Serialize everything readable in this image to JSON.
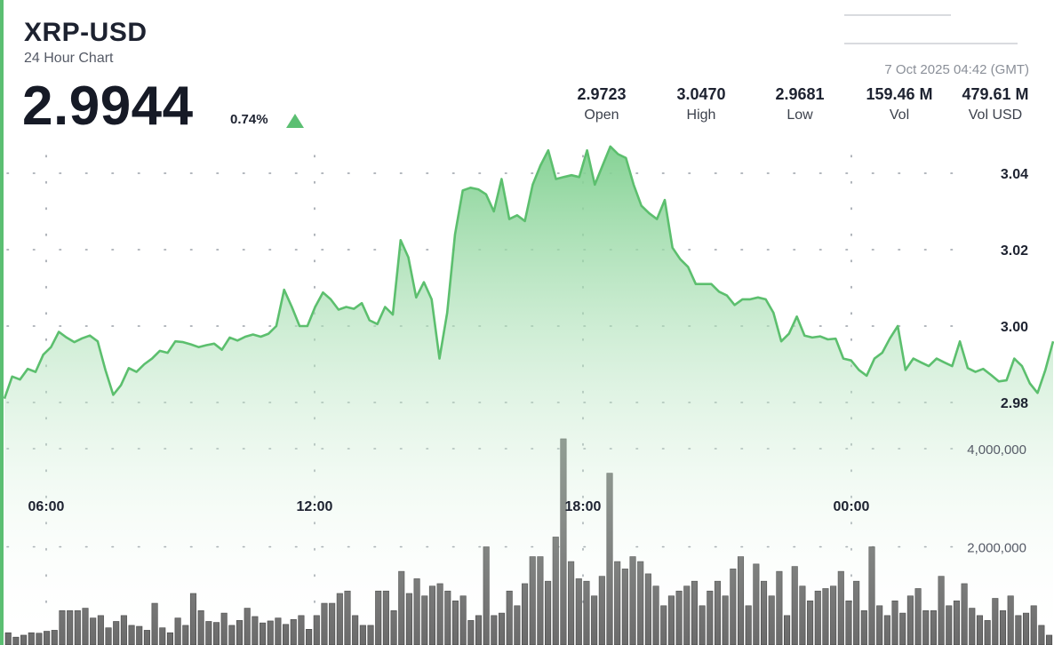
{
  "header": {
    "pair": "XRP-USD",
    "subtitle": "24 Hour Chart",
    "price": "2.9944",
    "change_pct": "0.74%",
    "timestamp": "7 Oct 2025 04:42 (GMT)"
  },
  "stats": [
    {
      "value": "2.9723",
      "label": "Open"
    },
    {
      "value": "3.0470",
      "label": "High"
    },
    {
      "value": "2.9681",
      "label": "Low"
    },
    {
      "value": "159.46 M",
      "label": "Vol"
    },
    {
      "value": "479.61 M",
      "label": "Vol USD"
    }
  ],
  "colors": {
    "accent": "#5bbf72",
    "line": "#5cbf6e",
    "area_top": "#7fd08f",
    "volume_bar": "#6b6b6b",
    "volume_bar_edge": "#3f3f3f",
    "grid_dot": "#9aa0a8"
  },
  "chart_data": {
    "type": "area",
    "x_tick_labels": [
      "06:00",
      "12:00",
      "18:00",
      "00:00"
    ],
    "price": {
      "ylim": [
        2.968,
        3.047
      ],
      "y_ticks": [
        2.98,
        3.0,
        3.02,
        3.04
      ],
      "y_tick_labels": [
        "2.98",
        "3.00",
        "3.02",
        "3.04"
      ],
      "values": [
        2.981,
        2.9868,
        2.986,
        2.9888,
        2.988,
        2.9925,
        2.9945,
        2.9985,
        2.997,
        2.9958,
        2.9968,
        2.9975,
        2.996,
        2.9885,
        2.982,
        2.9845,
        2.989,
        2.988,
        2.99,
        2.9915,
        2.9935,
        2.993,
        2.996,
        2.9958,
        2.9952,
        2.9945,
        2.995,
        2.9954,
        2.9938,
        2.997,
        2.9962,
        2.9972,
        2.9978,
        2.9972,
        2.998,
        3.0,
        3.0095,
        3.005,
        3.0,
        3.0,
        3.005,
        3.0088,
        3.007,
        3.0043,
        3.005,
        3.0045,
        3.006,
        3.0015,
        3.0005,
        3.005,
        3.003,
        3.0225,
        3.018,
        3.0075,
        3.0115,
        3.007,
        2.9915,
        3.0035,
        3.024,
        3.0355,
        3.0362,
        3.0358,
        3.0345,
        3.03,
        3.0385,
        3.028,
        3.029,
        3.0275,
        3.037,
        3.042,
        3.046,
        3.0385,
        3.039,
        3.0395,
        3.039,
        3.046,
        3.037,
        3.042,
        3.047,
        3.045,
        3.044,
        3.037,
        3.0315,
        3.0295,
        3.028,
        3.033,
        3.0205,
        3.0175,
        3.0155,
        3.011,
        3.011,
        3.011,
        3.009,
        3.008,
        3.0055,
        3.007,
        3.007,
        3.0075,
        3.007,
        3.0035,
        2.996,
        2.998,
        3.0025,
        2.9975,
        2.997,
        2.9973,
        2.9965,
        2.9967,
        2.9915,
        2.991,
        2.9885,
        2.987,
        2.9915,
        2.993,
        2.9968,
        3.0,
        2.9885,
        2.9915,
        2.9905,
        2.9895,
        2.9915,
        2.9905,
        2.9895,
        2.996,
        2.989,
        2.988,
        2.9888,
        2.9872,
        2.9855,
        2.9858,
        2.9915,
        2.9895,
        2.985,
        2.9825,
        2.9885,
        2.996
      ]
    },
    "volume": {
      "y_ticks": [
        2000000,
        4000000
      ],
      "y_tick_labels": [
        "2,000,000",
        "4,000,000"
      ],
      "values": [
        250000,
        160000,
        200000,
        250000,
        240000,
        280000,
        300000,
        700000,
        700000,
        700000,
        750000,
        550000,
        600000,
        350000,
        480000,
        600000,
        400000,
        380000,
        300000,
        850000,
        350000,
        250000,
        550000,
        400000,
        1050000,
        700000,
        480000,
        460000,
        650000,
        400000,
        500000,
        750000,
        580000,
        450000,
        490000,
        550000,
        420000,
        520000,
        600000,
        320000,
        600000,
        850000,
        850000,
        1050000,
        1100000,
        600000,
        400000,
        400000,
        1100000,
        1100000,
        700000,
        1500000,
        1050000,
        1350000,
        1000000,
        1200000,
        1250000,
        1100000,
        900000,
        1000000,
        500000,
        600000,
        2000000,
        600000,
        650000,
        1100000,
        800000,
        1250000,
        1800000,
        1800000,
        1300000,
        2200000,
        4200000,
        1700000,
        1350000,
        1300000,
        1000000,
        1400000,
        3500000,
        1700000,
        1550000,
        1800000,
        1700000,
        1450000,
        1200000,
        800000,
        1000000,
        1100000,
        1200000,
        1300000,
        800000,
        1100000,
        1300000,
        1000000,
        1550000,
        1800000,
        800000,
        1650000,
        1300000,
        1000000,
        1500000,
        600000,
        1600000,
        1200000,
        900000,
        1100000,
        1150000,
        1200000,
        1500000,
        900000,
        1300000,
        700000,
        2000000,
        800000,
        600000,
        900000,
        650000,
        1000000,
        1150000,
        700000,
        700000,
        1400000,
        800000,
        900000,
        1250000,
        750000,
        600000,
        500000,
        950000,
        700000,
        1000000,
        600000,
        650000,
        800000,
        400000,
        200000
      ]
    },
    "grid": true,
    "y_axis_position": "right"
  }
}
